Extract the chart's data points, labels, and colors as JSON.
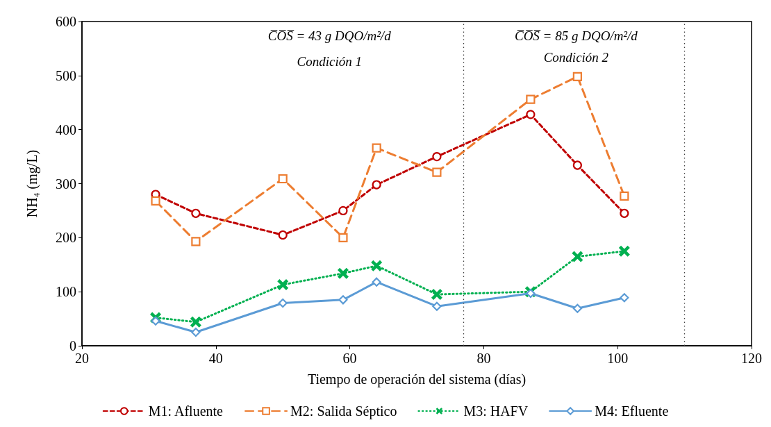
{
  "chart_data": {
    "type": "line",
    "xlabel": "Tiempo de operación del sistema (días)",
    "ylabel": "NH₄ (mg/L)",
    "x": [
      31,
      37,
      50,
      59,
      64,
      73,
      87,
      94,
      101
    ],
    "xlim": [
      20,
      120
    ],
    "xticks": [
      20,
      40,
      60,
      80,
      100,
      120
    ],
    "ylim": [
      0,
      600
    ],
    "yticks": [
      0,
      100,
      200,
      300,
      400,
      500,
      600
    ],
    "grid": false,
    "legend": "bottom",
    "series": [
      {
        "name": "M1: Afluente",
        "color": "#c00000",
        "marker": "circle",
        "line_style": "dashed",
        "values": [
          280,
          245,
          205,
          250,
          298,
          350,
          428,
          334,
          245
        ]
      },
      {
        "name": "M2: Salida Séptico",
        "color": "#ed7d31",
        "marker": "square",
        "line_style": "dashed",
        "values": [
          268,
          193,
          309,
          200,
          366,
          321,
          456,
          498,
          277
        ]
      },
      {
        "name": "M3: HAFV",
        "color": "#00b050",
        "marker": "cross",
        "line_style": "dotted",
        "values": [
          52,
          44,
          113,
          134,
          148,
          95,
          100,
          165,
          175
        ]
      },
      {
        "name": "M4: Efluente",
        "color": "#5b9bd5",
        "marker": "diamond",
        "line_style": "solid",
        "values": [
          46,
          25,
          79,
          85,
          118,
          73,
          97,
          69,
          89
        ]
      }
    ],
    "ref_lines": [
      {
        "axis": "x",
        "value": 77,
        "color": "#404040",
        "line_style": "dotted"
      },
      {
        "axis": "x",
        "value": 110,
        "color": "#404040",
        "line_style": "dotted"
      }
    ],
    "annotations": [
      "C̅O̅S̅ = 43 g DQO/m²/d",
      "Condición 1",
      "C̅O̅S̅ = 85 g DQO/m²/d",
      "Condición 2"
    ]
  }
}
